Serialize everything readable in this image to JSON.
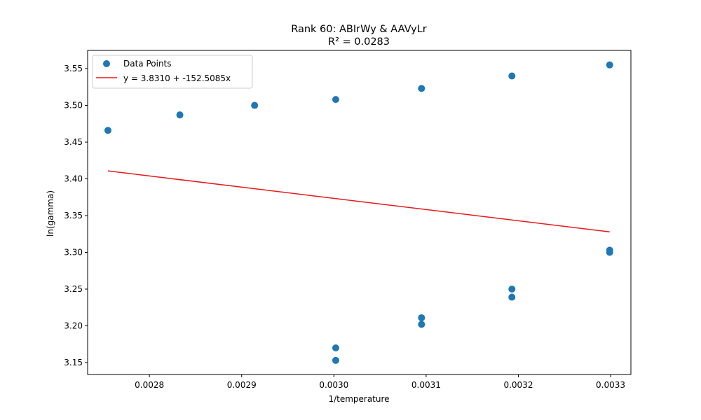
{
  "chart_data": {
    "type": "scatter",
    "title": "Rank 60: ABIrWy & AAVyLr",
    "subtitle": "R² = 0.0283",
    "xlabel": "1/temperature",
    "ylabel": "ln(gamma)",
    "xlim": [
      0.002733,
      0.003322
    ],
    "ylim": [
      3.1338,
      3.5748
    ],
    "xticks": [
      0.0028,
      0.0029,
      0.003,
      0.0031,
      0.0032,
      0.0033
    ],
    "xtick_labels": [
      "0.0028",
      "0.0029",
      "0.0030",
      "0.0031",
      "0.0032",
      "0.0033"
    ],
    "yticks": [
      3.15,
      3.2,
      3.25,
      3.3,
      3.35,
      3.4,
      3.45,
      3.5,
      3.55
    ],
    "ytick_labels": [
      "3.15",
      "3.20",
      "3.25",
      "3.30",
      "3.35",
      "3.40",
      "3.45",
      "3.50",
      "3.55"
    ],
    "grid": false,
    "legend_position": "top-left",
    "series": [
      {
        "name": "Data Points",
        "kind": "scatter",
        "color": "#1f77b4",
        "points": [
          {
            "x": 0.002755,
            "y": 3.466
          },
          {
            "x": 0.002833,
            "y": 3.487
          },
          {
            "x": 0.002914,
            "y": 3.5
          },
          {
            "x": 0.003002,
            "y": 3.508
          },
          {
            "x": 0.003002,
            "y": 3.17
          },
          {
            "x": 0.003002,
            "y": 3.153
          },
          {
            "x": 0.003095,
            "y": 3.523
          },
          {
            "x": 0.003095,
            "y": 3.211
          },
          {
            "x": 0.003095,
            "y": 3.202
          },
          {
            "x": 0.003193,
            "y": 3.54
          },
          {
            "x": 0.003193,
            "y": 3.25
          },
          {
            "x": 0.003193,
            "y": 3.239
          },
          {
            "x": 0.003299,
            "y": 3.555
          },
          {
            "x": 0.003299,
            "y": 3.303
          },
          {
            "x": 0.003299,
            "y": 3.3
          }
        ]
      },
      {
        "name": "y = 3.8310 + -152.5085x",
        "kind": "line",
        "color": "#e41a1c",
        "intercept": 3.831,
        "slope": -152.5085,
        "x_range": [
          0.002755,
          0.003299
        ]
      }
    ]
  }
}
